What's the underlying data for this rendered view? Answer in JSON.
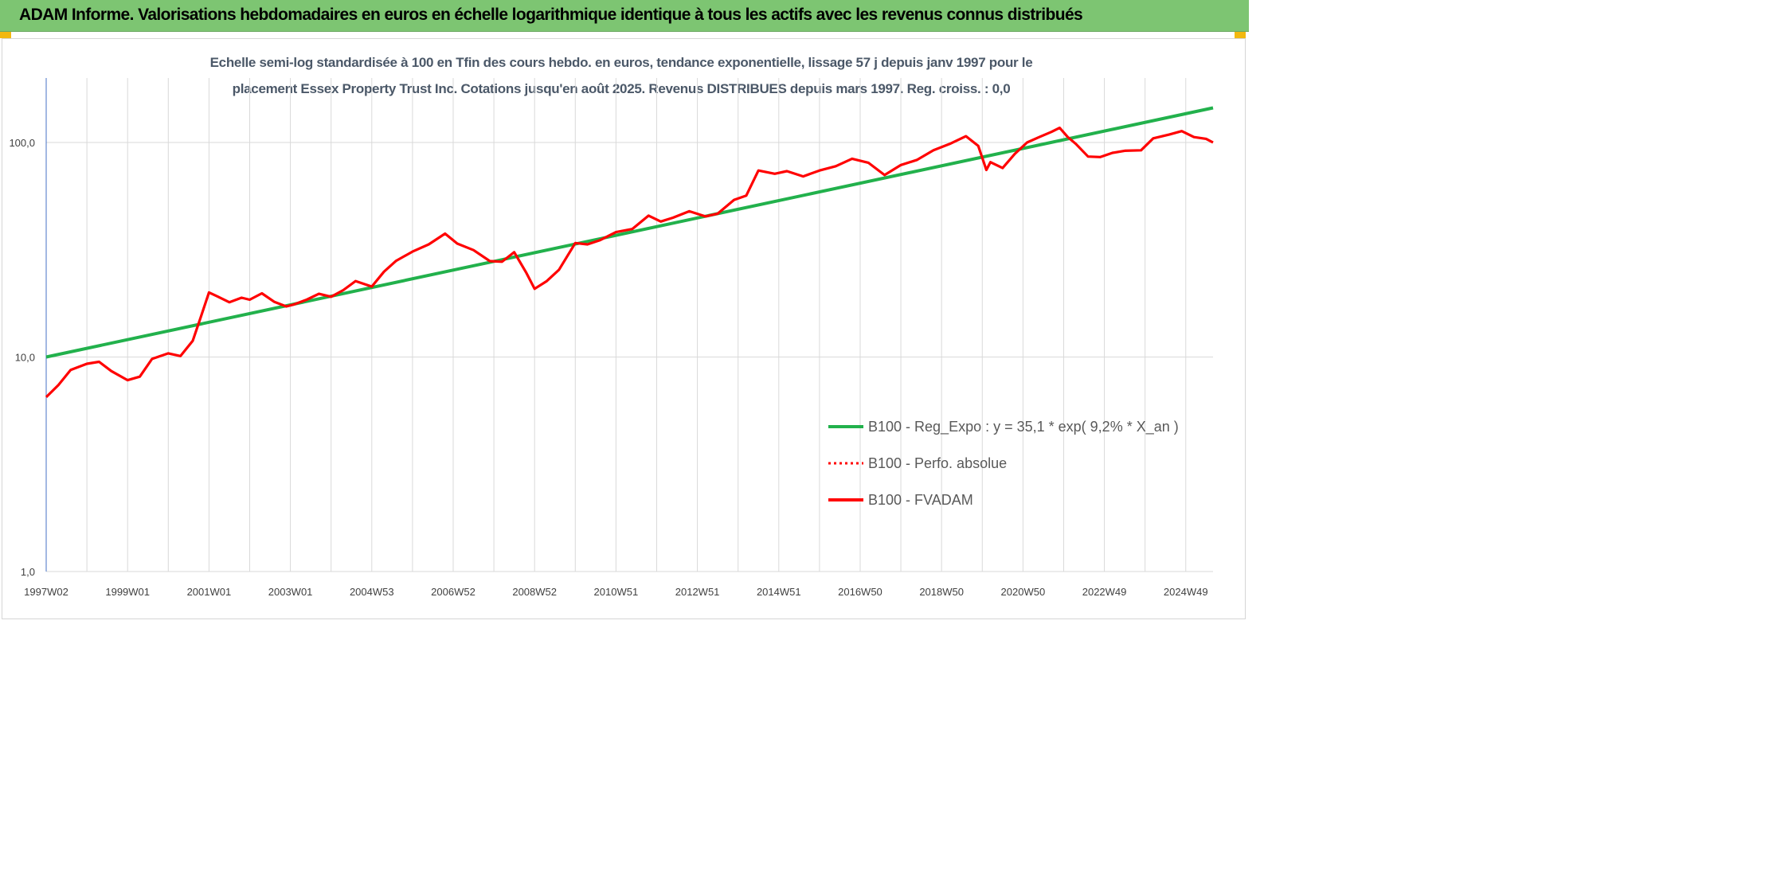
{
  "header": {
    "title": "ADAM Informe. Valorisations hebdomadaires en euros en échelle logarithmique identique à tous les actifs avec les revenus connus distribués"
  },
  "chart_data": {
    "type": "line",
    "title": "Echelle semi-log standardisée à 100 en Tfin des cours hebdo. en euros, tendance exponentielle, lissage 57 j depuis janv 1997 pour le",
    "subtitle": "placement Essex Property Trust Inc. Cotations jusqu'en août 2025. Revenus DISTRIBUES depuis mars 1997. Reg. croiss. : 0,0",
    "y_scale": "log",
    "ylim": [
      1,
      200
    ],
    "xlim": [
      1997.0,
      2025.67
    ],
    "y_ticks": [
      {
        "value": 1,
        "label": "1,0"
      },
      {
        "value": 10,
        "label": "10,0"
      },
      {
        "value": 100,
        "label": "100,0"
      }
    ],
    "x_ticks": [
      {
        "value": 1997.0,
        "label": "1997W02"
      },
      {
        "value": 1999.0,
        "label": "1999W01"
      },
      {
        "value": 2001.0,
        "label": "2001W01"
      },
      {
        "value": 2003.0,
        "label": "2003W01"
      },
      {
        "value": 2005.0,
        "label": "2004W53"
      },
      {
        "value": 2007.0,
        "label": "2006W52"
      },
      {
        "value": 2009.0,
        "label": "2008W52"
      },
      {
        "value": 2011.0,
        "label": "2010W51"
      },
      {
        "value": 2013.0,
        "label": "2012W51"
      },
      {
        "value": 2015.0,
        "label": "2014W51"
      },
      {
        "value": 2017.0,
        "label": "2016W50"
      },
      {
        "value": 2019.0,
        "label": "2018W50"
      },
      {
        "value": 2021.0,
        "label": "2020W50"
      },
      {
        "value": 2023.0,
        "label": "2022W49"
      },
      {
        "value": 2025.0,
        "label": "2024W49"
      }
    ],
    "grid": true,
    "legend_position": "bottom-right",
    "series": [
      {
        "name": "B100 - Reg_Expo : y = 35,1 * exp( 9,2% *  X_an )",
        "color": "#22b14c",
        "style": "solid",
        "x": [
          1997.0,
          2025.67
        ],
        "y": [
          10.0,
          145.0
        ]
      },
      {
        "name": "B100 - Perfo. absolue",
        "color": "#ff0000",
        "style": "dotted",
        "x": [],
        "y": []
      },
      {
        "name": "B100 - FVADAM",
        "color": "#ff0000",
        "style": "solid",
        "x": [
          1997.0,
          1997.3,
          1997.6,
          1998.0,
          1998.3,
          1998.6,
          1999.0,
          1999.3,
          1999.6,
          2000.0,
          2000.3,
          2000.6,
          2000.8,
          2001.0,
          2001.2,
          2001.5,
          2001.8,
          2002.0,
          2002.3,
          2002.6,
          2002.9,
          2003.1,
          2003.4,
          2003.7,
          2004.0,
          2004.3,
          2004.6,
          2005.0,
          2005.3,
          2005.6,
          2006.0,
          2006.4,
          2006.8,
          2007.1,
          2007.5,
          2007.9,
          2008.2,
          2008.5,
          2008.8,
          2009.0,
          2009.3,
          2009.6,
          2010.0,
          2010.3,
          2010.6,
          2011.0,
          2011.4,
          2011.8,
          2012.1,
          2012.4,
          2012.8,
          2013.2,
          2013.5,
          2013.9,
          2014.2,
          2014.5,
          2014.9,
          2015.2,
          2015.6,
          2016.0,
          2016.4,
          2016.8,
          2017.2,
          2017.6,
          2018.0,
          2018.4,
          2018.8,
          2019.2,
          2019.6,
          2019.9,
          2020.1,
          2020.2,
          2020.5,
          2020.8,
          2021.1,
          2021.4,
          2021.7,
          2021.9,
          2022.1,
          2022.3,
          2022.6,
          2022.9,
          2023.2,
          2023.5,
          2023.9,
          2024.2,
          2024.6,
          2024.9,
          2025.2,
          2025.5,
          2025.67
        ],
        "y": [
          6.5,
          7.4,
          8.7,
          9.3,
          9.5,
          8.6,
          7.8,
          8.1,
          9.8,
          10.4,
          10.1,
          11.9,
          15.4,
          20.0,
          19.2,
          18.0,
          18.9,
          18.5,
          19.8,
          18.1,
          17.2,
          17.6,
          18.5,
          19.7,
          19.1,
          20.5,
          22.6,
          21.3,
          25.0,
          28.1,
          31.0,
          33.5,
          37.6,
          33.8,
          31.5,
          28.0,
          27.8,
          30.8,
          24.6,
          20.8,
          22.6,
          25.5,
          34.0,
          33.5,
          35.0,
          38.2,
          39.5,
          45.6,
          42.8,
          44.6,
          47.8,
          45.2,
          46.6,
          54.0,
          56.5,
          74.0,
          71.5,
          73.5,
          69.5,
          74.0,
          77.5,
          84.0,
          80.5,
          70.5,
          78.5,
          83.0,
          92.0,
          98.5,
          107.0,
          96.5,
          74.5,
          81.0,
          76.0,
          88.5,
          100.0,
          106.0,
          112.0,
          117.0,
          106.0,
          98.5,
          86.0,
          85.5,
          89.5,
          91.5,
          92.0,
          104.5,
          109.0,
          113.0,
          106.0,
          104.0,
          100.0
        ]
      }
    ]
  }
}
